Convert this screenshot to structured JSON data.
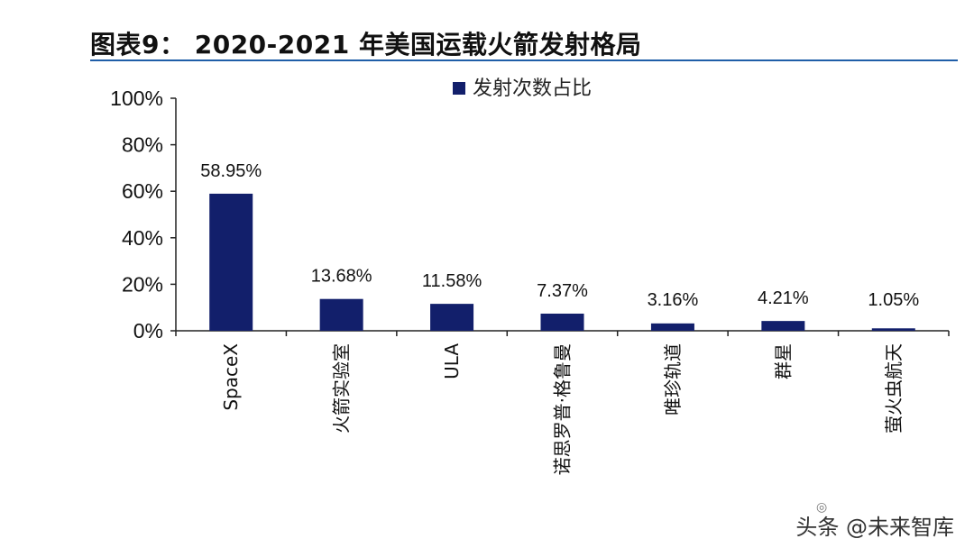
{
  "header": {
    "title": "图表9： 2020-2021 年美国运载火箭发射格局"
  },
  "watermark": {
    "text": "头条 @未来智库"
  },
  "colors": {
    "bar": "#121f6b",
    "axis": "#222222",
    "title_rule": "#1f5ea8"
  },
  "chart_data": {
    "type": "bar",
    "title": "",
    "xlabel": "",
    "ylabel": "",
    "categories": [
      "SpaceX",
      "火箭实验室",
      "ULA",
      "诺思罗普·格鲁曼",
      "唯珍轨道",
      "群星",
      "萤火虫航天"
    ],
    "series": [
      {
        "name": "发射次数占比",
        "values": [
          58.95,
          13.68,
          11.58,
          7.37,
          3.16,
          4.21,
          1.05
        ]
      }
    ],
    "data_labels": [
      "58.95%",
      "13.68%",
      "11.58%",
      "7.37%",
      "3.16%",
      "4.21%",
      "1.05%"
    ],
    "ylim": [
      0,
      100
    ],
    "yticks": [
      0,
      20,
      40,
      60,
      80,
      100
    ],
    "ytick_labels": [
      "0%",
      "20%",
      "40%",
      "60%",
      "80%",
      "100%"
    ],
    "grid": false,
    "legend": "top-center"
  }
}
